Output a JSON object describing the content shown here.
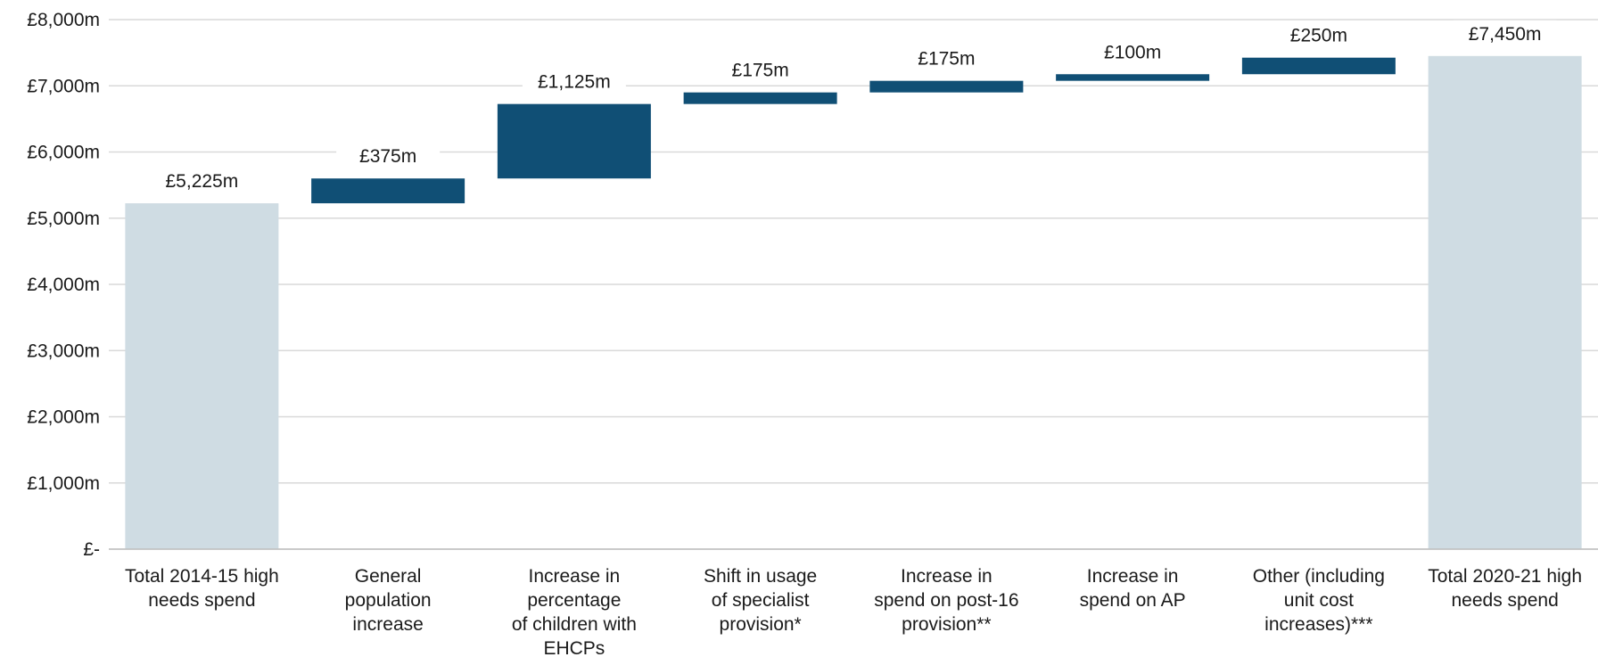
{
  "chart_data": {
    "type": "bar",
    "subtype": "waterfall",
    "y_tick_labels": [
      "£-",
      "£1,000m",
      "£2,000m",
      "£3,000m",
      "£4,000m",
      "£5,000m",
      "£6,000m",
      "£7,000m",
      "£8,000m"
    ],
    "ylim": [
      0,
      8000
    ],
    "grid": true,
    "legend": "none",
    "colors": {
      "total": "#cfdce3",
      "change": "#104f75",
      "grid": "#d9d9d9"
    },
    "bars": [
      {
        "category": [
          "Total 2014-15 high",
          "needs spend"
        ],
        "kind": "total",
        "start": 0,
        "value": 5225,
        "label": "£5,225m"
      },
      {
        "category": [
          "General",
          "population",
          "increase"
        ],
        "kind": "change",
        "start": 5225,
        "value": 375,
        "label": "£375m"
      },
      {
        "category": [
          "Increase in",
          "percentage",
          "of children with",
          "EHCPs"
        ],
        "kind": "change",
        "start": 5600,
        "value": 1125,
        "label": "£1,125m"
      },
      {
        "category": [
          "Shift in usage",
          "of specialist",
          "provision*"
        ],
        "kind": "change",
        "start": 6725,
        "value": 175,
        "label": "£175m"
      },
      {
        "category": [
          "Increase in",
          "spend on post-16",
          "provision**"
        ],
        "kind": "change",
        "start": 6900,
        "value": 175,
        "label": "£175m"
      },
      {
        "category": [
          "Increase in",
          "spend on AP"
        ],
        "kind": "change",
        "start": 7075,
        "value": 100,
        "label": "£100m"
      },
      {
        "category": [
          "Other (including",
          "unit cost",
          "increases)***"
        ],
        "kind": "change",
        "start": 7175,
        "value": 250,
        "label": "£250m"
      },
      {
        "category": [
          "Total 2020-21 high",
          "needs spend"
        ],
        "kind": "total",
        "start": 0,
        "value": 7450,
        "label": "£7,450m"
      }
    ]
  }
}
